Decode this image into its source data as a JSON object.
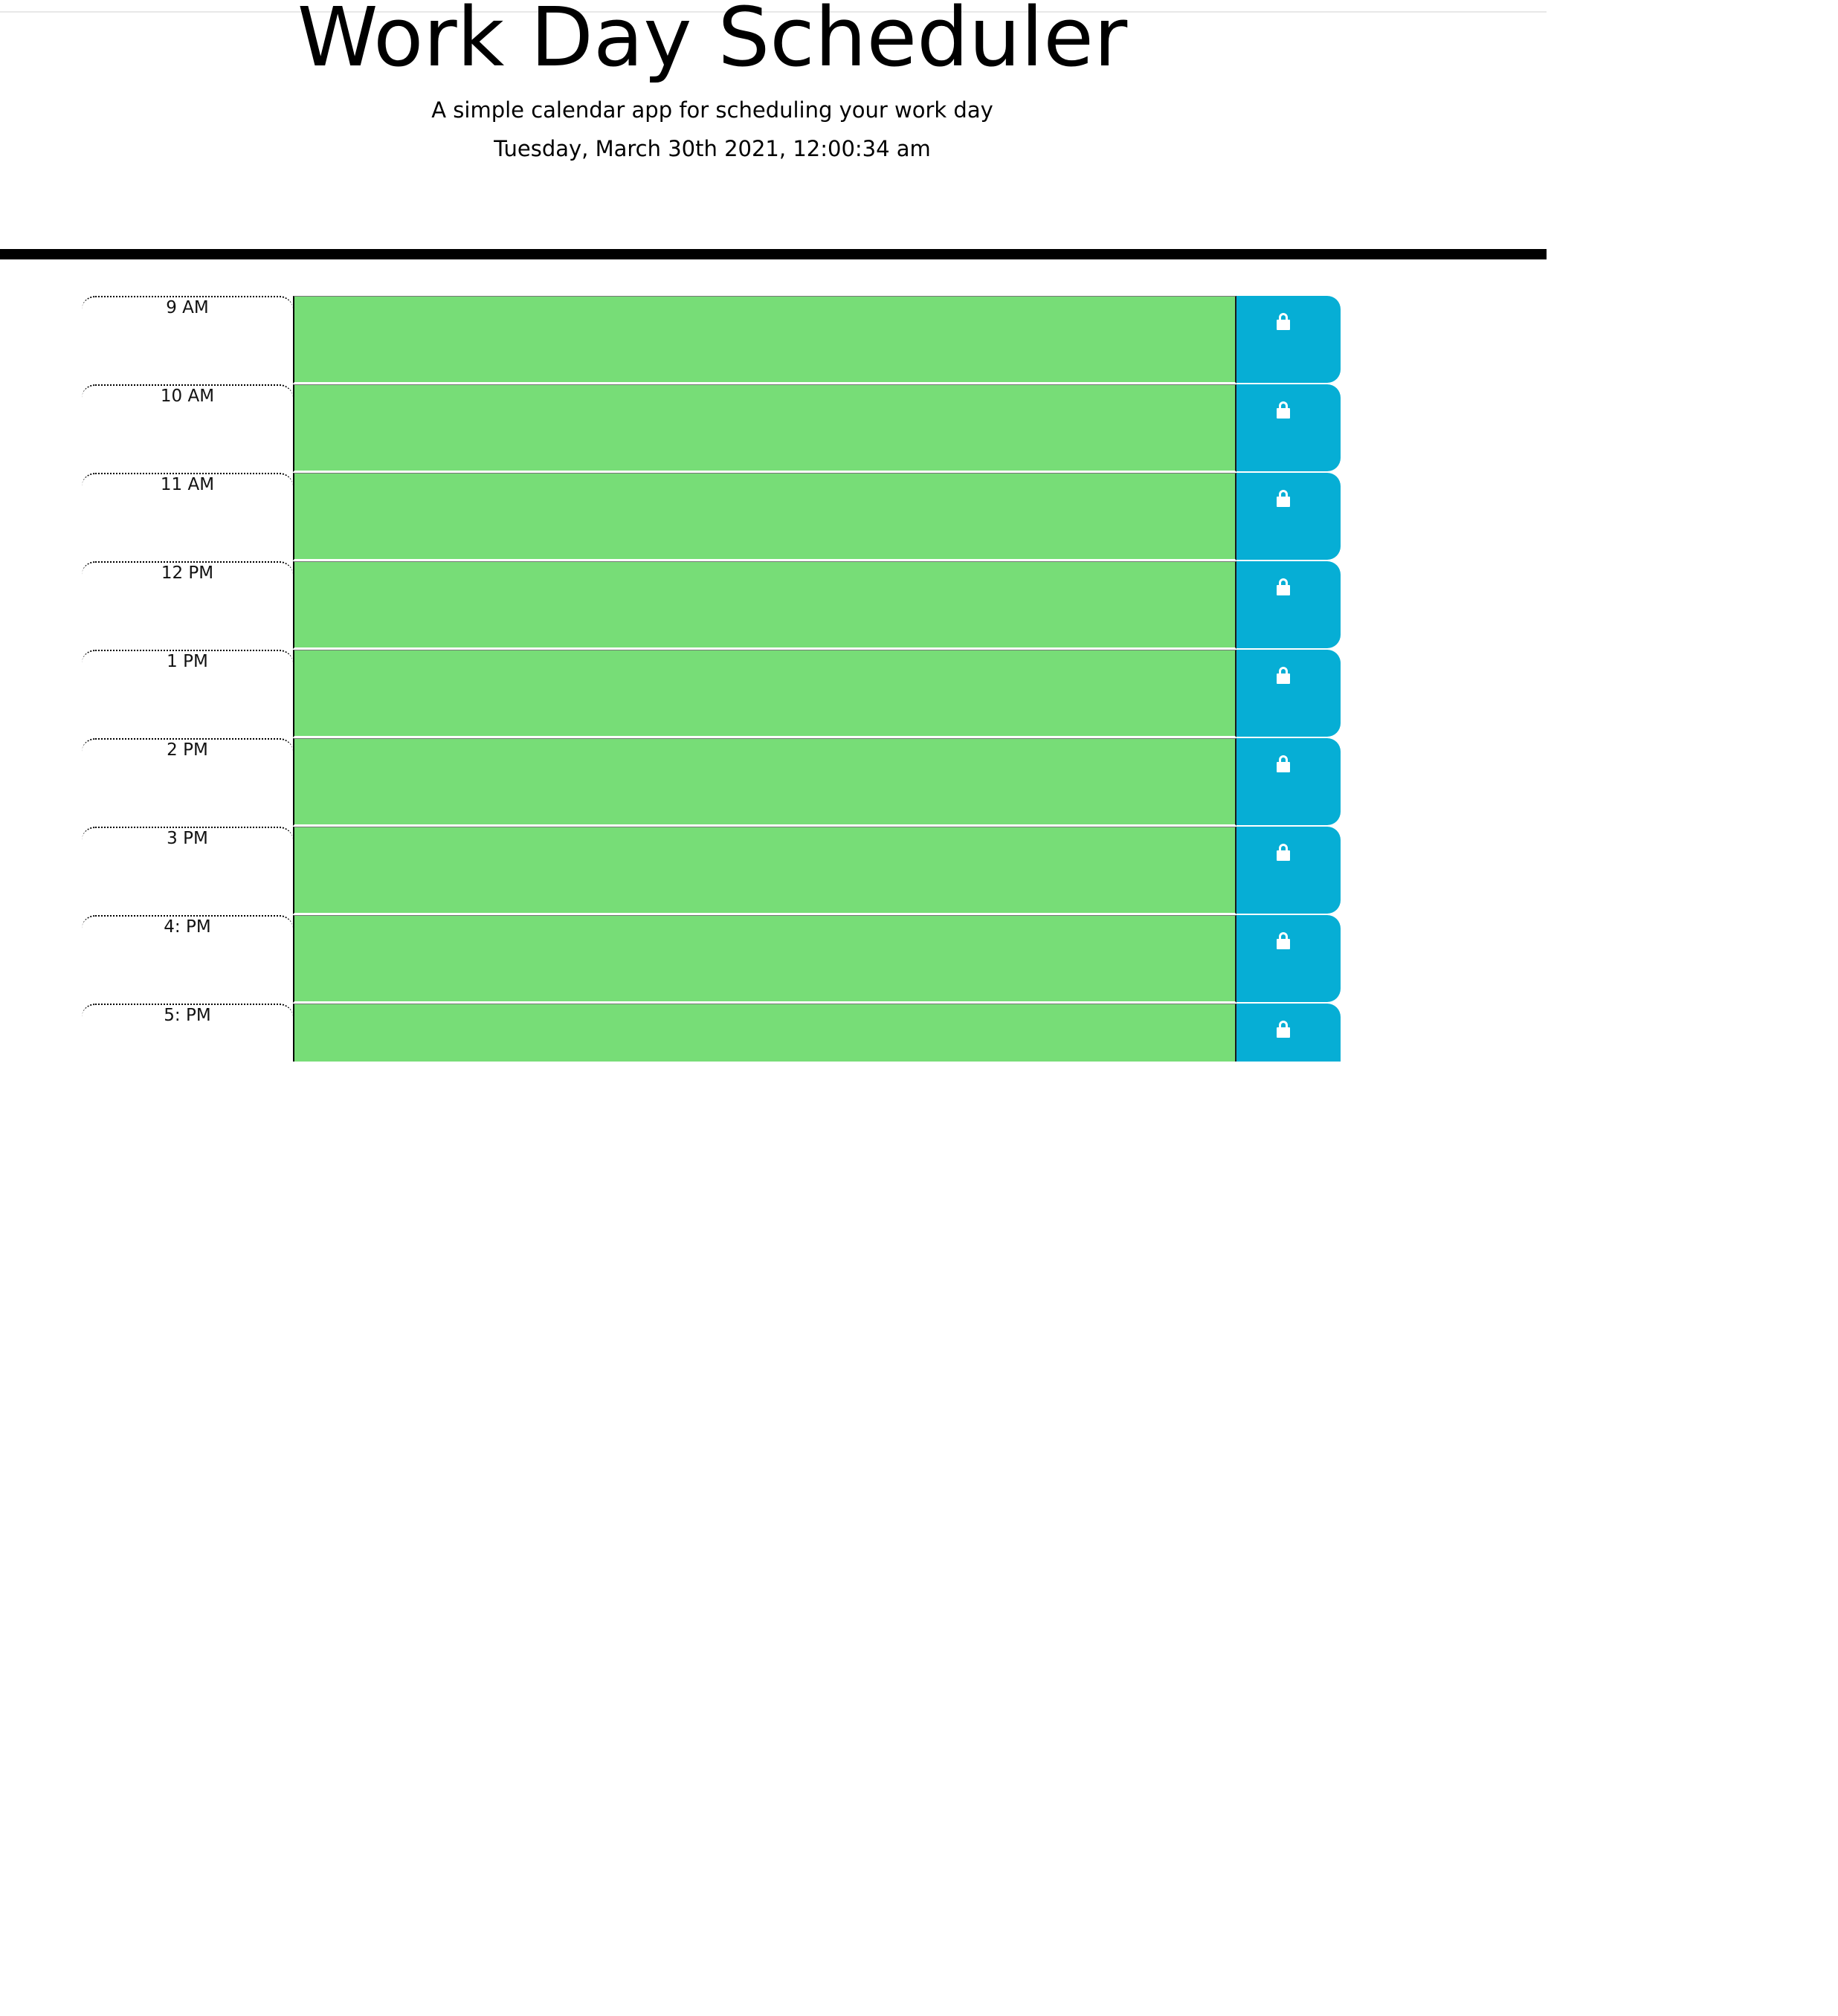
{
  "header": {
    "title": "Work Day Scheduler",
    "subtitle": "A simple calendar app for scheduling your work day",
    "current_day": "Tuesday, March 30th 2021, 12:00:34 am"
  },
  "colors": {
    "future": "#77dd77",
    "save_button": "#06aed5",
    "lock_icon": "#ffffff"
  },
  "schedule": {
    "rows": [
      {
        "hour": "9 AM",
        "text": "",
        "state": "future",
        "icon": "lock-icon"
      },
      {
        "hour": "10 AM",
        "text": "",
        "state": "future",
        "icon": "lock-icon"
      },
      {
        "hour": "11 AM",
        "text": "",
        "state": "future",
        "icon": "lock-icon"
      },
      {
        "hour": "12 PM",
        "text": "",
        "state": "future",
        "icon": "lock-icon"
      },
      {
        "hour": "1 PM",
        "text": "",
        "state": "future",
        "icon": "lock-icon"
      },
      {
        "hour": "2 PM",
        "text": "",
        "state": "future",
        "icon": "lock-icon"
      },
      {
        "hour": "3 PM",
        "text": "",
        "state": "future",
        "icon": "lock-icon"
      },
      {
        "hour": "4: PM",
        "text": "",
        "state": "future",
        "icon": "lock-icon"
      },
      {
        "hour": "5: PM",
        "text": "",
        "state": "future",
        "icon": "lock-icon"
      }
    ]
  }
}
